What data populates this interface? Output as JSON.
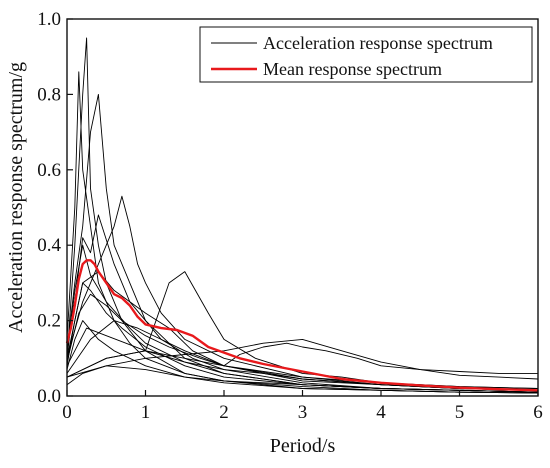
{
  "chart_data": {
    "type": "line",
    "title": "",
    "xlabel": "Period/s",
    "ylabel": "Acceleration response spectrum/g",
    "xlim": [
      0,
      6
    ],
    "ylim": [
      0,
      1.0
    ],
    "xticks": [
      0,
      1,
      2,
      3,
      4,
      5,
      6
    ],
    "yticks": [
      0.0,
      0.2,
      0.4,
      0.6,
      0.8,
      1.0
    ],
    "xtick_labels": [
      "0",
      "1",
      "2",
      "3",
      "4",
      "5",
      "6"
    ],
    "ytick_labels": [
      "0.0",
      "0.2",
      "0.4",
      "0.6",
      "0.8",
      "1.0"
    ],
    "grid": false,
    "legend_position": "top-right",
    "legend": [
      {
        "label": "Acceleration response spectrum",
        "color": "#000000"
      },
      {
        "label": "Mean response spectrum",
        "color": "#e8191c"
      }
    ],
    "series": [
      {
        "name": "Mean response spectrum",
        "color": "#e8191c",
        "x": [
          0,
          0.05,
          0.1,
          0.15,
          0.2,
          0.25,
          0.3,
          0.35,
          0.4,
          0.5,
          0.6,
          0.7,
          0.8,
          0.9,
          1.0,
          1.2,
          1.4,
          1.6,
          1.8,
          2.0,
          2.2,
          2.5,
          3.0,
          3.5,
          4.0,
          4.5,
          5.0,
          5.5,
          6.0
        ],
        "y": [
          0.14,
          0.18,
          0.24,
          0.31,
          0.35,
          0.36,
          0.36,
          0.35,
          0.33,
          0.3,
          0.27,
          0.26,
          0.24,
          0.21,
          0.19,
          0.18,
          0.175,
          0.16,
          0.13,
          0.115,
          0.1,
          0.085,
          0.065,
          0.045,
          0.035,
          0.028,
          0.022,
          0.018,
          0.015
        ]
      },
      {
        "color": "#000000",
        "x": [
          0,
          0.1,
          0.2,
          0.25,
          0.3,
          0.4,
          0.5,
          0.7,
          1.0,
          1.5,
          2.0,
          3.0,
          4.0,
          5.0,
          6.0
        ],
        "y": [
          0.1,
          0.4,
          0.8,
          0.95,
          0.55,
          0.4,
          0.3,
          0.2,
          0.12,
          0.06,
          0.04,
          0.02,
          0.015,
          0.01,
          0.008
        ]
      },
      {
        "color": "#000000",
        "x": [
          0,
          0.1,
          0.15,
          0.2,
          0.3,
          0.4,
          0.6,
          0.8,
          1.0,
          1.5,
          2.0,
          3.0,
          4.0,
          5.0,
          6.0
        ],
        "y": [
          0.15,
          0.5,
          0.86,
          0.6,
          0.45,
          0.3,
          0.2,
          0.14,
          0.1,
          0.06,
          0.04,
          0.025,
          0.015,
          0.01,
          0.008
        ]
      },
      {
        "color": "#000000",
        "x": [
          0,
          0.1,
          0.2,
          0.3,
          0.4,
          0.5,
          0.6,
          0.8,
          1.0,
          1.5,
          2.0,
          3.0,
          4.0,
          5.0,
          6.0
        ],
        "y": [
          0.12,
          0.3,
          0.45,
          0.7,
          0.8,
          0.55,
          0.4,
          0.3,
          0.2,
          0.1,
          0.06,
          0.03,
          0.02,
          0.015,
          0.01
        ]
      },
      {
        "color": "#000000",
        "x": [
          0,
          0.2,
          0.4,
          0.6,
          0.7,
          0.8,
          0.9,
          1.0,
          1.2,
          1.5,
          2.0,
          3.0,
          4.0,
          5.0,
          6.0
        ],
        "y": [
          0.1,
          0.25,
          0.35,
          0.45,
          0.53,
          0.45,
          0.35,
          0.3,
          0.22,
          0.15,
          0.1,
          0.05,
          0.03,
          0.02,
          0.015
        ]
      },
      {
        "color": "#000000",
        "x": [
          0,
          0.1,
          0.2,
          0.3,
          0.4,
          0.6,
          0.8,
          1.0,
          1.2,
          1.6,
          2.0,
          3.0,
          4.0,
          5.0,
          6.0
        ],
        "y": [
          0.12,
          0.25,
          0.42,
          0.38,
          0.48,
          0.35,
          0.25,
          0.2,
          0.15,
          0.1,
          0.07,
          0.035,
          0.02,
          0.015,
          0.01
        ]
      },
      {
        "color": "#000000",
        "x": [
          0,
          0.5,
          1.0,
          1.3,
          1.5,
          1.8,
          2.0,
          2.4,
          2.7,
          3.0,
          3.5,
          4.0,
          5.0,
          6.0
        ],
        "y": [
          0.05,
          0.1,
          0.12,
          0.3,
          0.33,
          0.22,
          0.15,
          0.1,
          0.08,
          0.06,
          0.05,
          0.035,
          0.025,
          0.02
        ]
      },
      {
        "color": "#000000",
        "x": [
          0,
          0.5,
          1.0,
          1.5,
          2.0,
          2.2,
          2.5,
          2.8,
          3.0,
          3.3,
          3.7,
          4.0,
          4.5,
          5.0,
          5.5,
          6.0
        ],
        "y": [
          0.05,
          0.1,
          0.12,
          0.1,
          0.08,
          0.11,
          0.13,
          0.14,
          0.13,
          0.12,
          0.1,
          0.08,
          0.07,
          0.065,
          0.06,
          0.06
        ]
      },
      {
        "color": "#000000",
        "x": [
          0,
          0.5,
          1.0,
          1.5,
          2.0,
          2.5,
          3.0,
          3.5,
          4.0,
          4.5,
          5.0,
          5.5,
          6.0
        ],
        "y": [
          0.05,
          0.08,
          0.1,
          0.11,
          0.12,
          0.14,
          0.15,
          0.12,
          0.09,
          0.07,
          0.055,
          0.05,
          0.045
        ]
      },
      {
        "color": "#000000",
        "x": [
          0,
          0.2,
          0.4,
          0.6,
          0.8,
          1.0,
          1.3,
          1.6,
          2.0,
          3.0,
          4.0,
          5.0,
          6.0
        ],
        "y": [
          0.1,
          0.3,
          0.33,
          0.28,
          0.25,
          0.22,
          0.18,
          0.12,
          0.08,
          0.04,
          0.03,
          0.02,
          0.015
        ]
      },
      {
        "color": "#000000",
        "x": [
          0,
          0.1,
          0.2,
          0.3,
          0.5,
          0.7,
          1.0,
          1.5,
          2.0,
          3.0,
          4.0,
          5.0,
          6.0
        ],
        "y": [
          0.08,
          0.2,
          0.3,
          0.28,
          0.22,
          0.18,
          0.13,
          0.08,
          0.05,
          0.03,
          0.02,
          0.015,
          0.01
        ]
      },
      {
        "color": "#000000",
        "x": [
          0,
          0.3,
          0.6,
          0.9,
          1.2,
          1.5,
          2.0,
          3.0,
          4.0,
          5.0,
          6.0
        ],
        "y": [
          0.06,
          0.15,
          0.2,
          0.18,
          0.15,
          0.12,
          0.08,
          0.05,
          0.035,
          0.025,
          0.02
        ]
      },
      {
        "color": "#000000",
        "x": [
          0,
          0.1,
          0.2,
          0.4,
          0.6,
          1.0,
          1.5,
          2.0,
          3.0,
          4.0,
          5.0,
          6.0
        ],
        "y": [
          0.07,
          0.15,
          0.2,
          0.15,
          0.12,
          0.08,
          0.05,
          0.035,
          0.02,
          0.015,
          0.01,
          0.008
        ]
      },
      {
        "color": "#000000",
        "x": [
          0,
          0.2,
          0.5,
          1.0,
          1.5,
          2.0,
          3.0,
          4.0,
          5.0,
          6.0
        ],
        "y": [
          0.03,
          0.06,
          0.08,
          0.07,
          0.05,
          0.04,
          0.03,
          0.02,
          0.015,
          0.01
        ]
      },
      {
        "color": "#000000",
        "x": [
          0,
          0.1,
          0.2,
          0.3,
          0.5,
          0.8,
          1.0,
          1.5,
          2.0,
          3.0,
          4.0,
          5.0,
          6.0
        ],
        "y": [
          0.1,
          0.28,
          0.4,
          0.32,
          0.25,
          0.18,
          0.14,
          0.09,
          0.06,
          0.03,
          0.02,
          0.015,
          0.01
        ]
      },
      {
        "color": "#000000",
        "x": [
          0,
          0.15,
          0.3,
          0.5,
          0.7,
          1.0,
          1.3,
          1.7,
          2.0,
          3.0,
          4.0,
          5.0,
          6.0
        ],
        "y": [
          0.09,
          0.22,
          0.27,
          0.24,
          0.2,
          0.16,
          0.13,
          0.1,
          0.08,
          0.045,
          0.03,
          0.02,
          0.015
        ]
      },
      {
        "color": "#000000",
        "x": [
          0,
          0.25,
          0.5,
          0.75,
          1.0,
          1.5,
          2.0,
          2.5,
          3.0,
          4.0,
          5.0,
          6.0
        ],
        "y": [
          0.08,
          0.18,
          0.16,
          0.14,
          0.12,
          0.09,
          0.07,
          0.06,
          0.045,
          0.03,
          0.02,
          0.015
        ]
      }
    ]
  }
}
